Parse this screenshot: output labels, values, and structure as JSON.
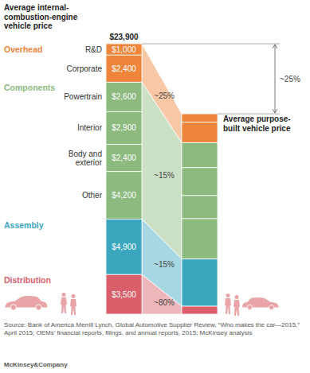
{
  "chart_data": {
    "type": "stacked_bar",
    "stacked": true,
    "data_labels": true,
    "tick_labels": false,
    "categories": [
      "Average internal-combustion-engine vehicle price",
      "Average purpose-built vehicle price"
    ],
    "ylim": [
      0,
      23900
    ],
    "total": 23900,
    "total_label": "$23,900",
    "total_change_label": "~25%",
    "groups": [
      {
        "name": "Overhead",
        "color": "#ef853a",
        "change_label": "~25%",
        "series": [
          {
            "name": "R&D",
            "values": [
              1000,
              750
            ],
            "value_labels": [
              "$1,000",
              null
            ]
          },
          {
            "name": "Corporate",
            "values": [
              2400,
              1800
            ],
            "value_labels": [
              "$2,400",
              null
            ]
          }
        ]
      },
      {
        "name": "Components",
        "color": "#8cba7f",
        "change_label": "~15%",
        "series": [
          {
            "name": "Powertrain",
            "values": [
              2600,
              2210
            ],
            "value_labels": [
              "$2,600",
              null
            ]
          },
          {
            "name": "Interior",
            "values": [
              2900,
              2470
            ],
            "value_labels": [
              "$2,900",
              null
            ]
          },
          {
            "name": "Body and exterior",
            "values": [
              2400,
              2040
            ],
            "value_labels": [
              "$2,400",
              null
            ]
          },
          {
            "name": "Other",
            "values": [
              4200,
              3570
            ],
            "value_labels": [
              "$4,200",
              null
            ]
          }
        ]
      },
      {
        "name": "Assembly",
        "color": "#3ba7bf",
        "change_label": "~15%",
        "series": [
          {
            "name": null,
            "values": [
              4900,
              4170
            ],
            "value_labels": [
              "$4,900",
              null
            ]
          }
        ]
      },
      {
        "name": "Distribution",
        "color": "#d9606a",
        "change_label": "~80%",
        "series": [
          {
            "name": null,
            "values": [
              3500,
              700
            ],
            "value_labels": [
              "$3,500",
              null
            ]
          }
        ]
      }
    ],
    "source": "Source: Bank of America Merrill Lynch, Global Automotive Supplier Review, “Who makes the car—2015,” April 2015; OEMs’ financial reports, filings, and annual reports, 2015; McKinsey analysis",
    "footer": "McKinsey&Company"
  }
}
